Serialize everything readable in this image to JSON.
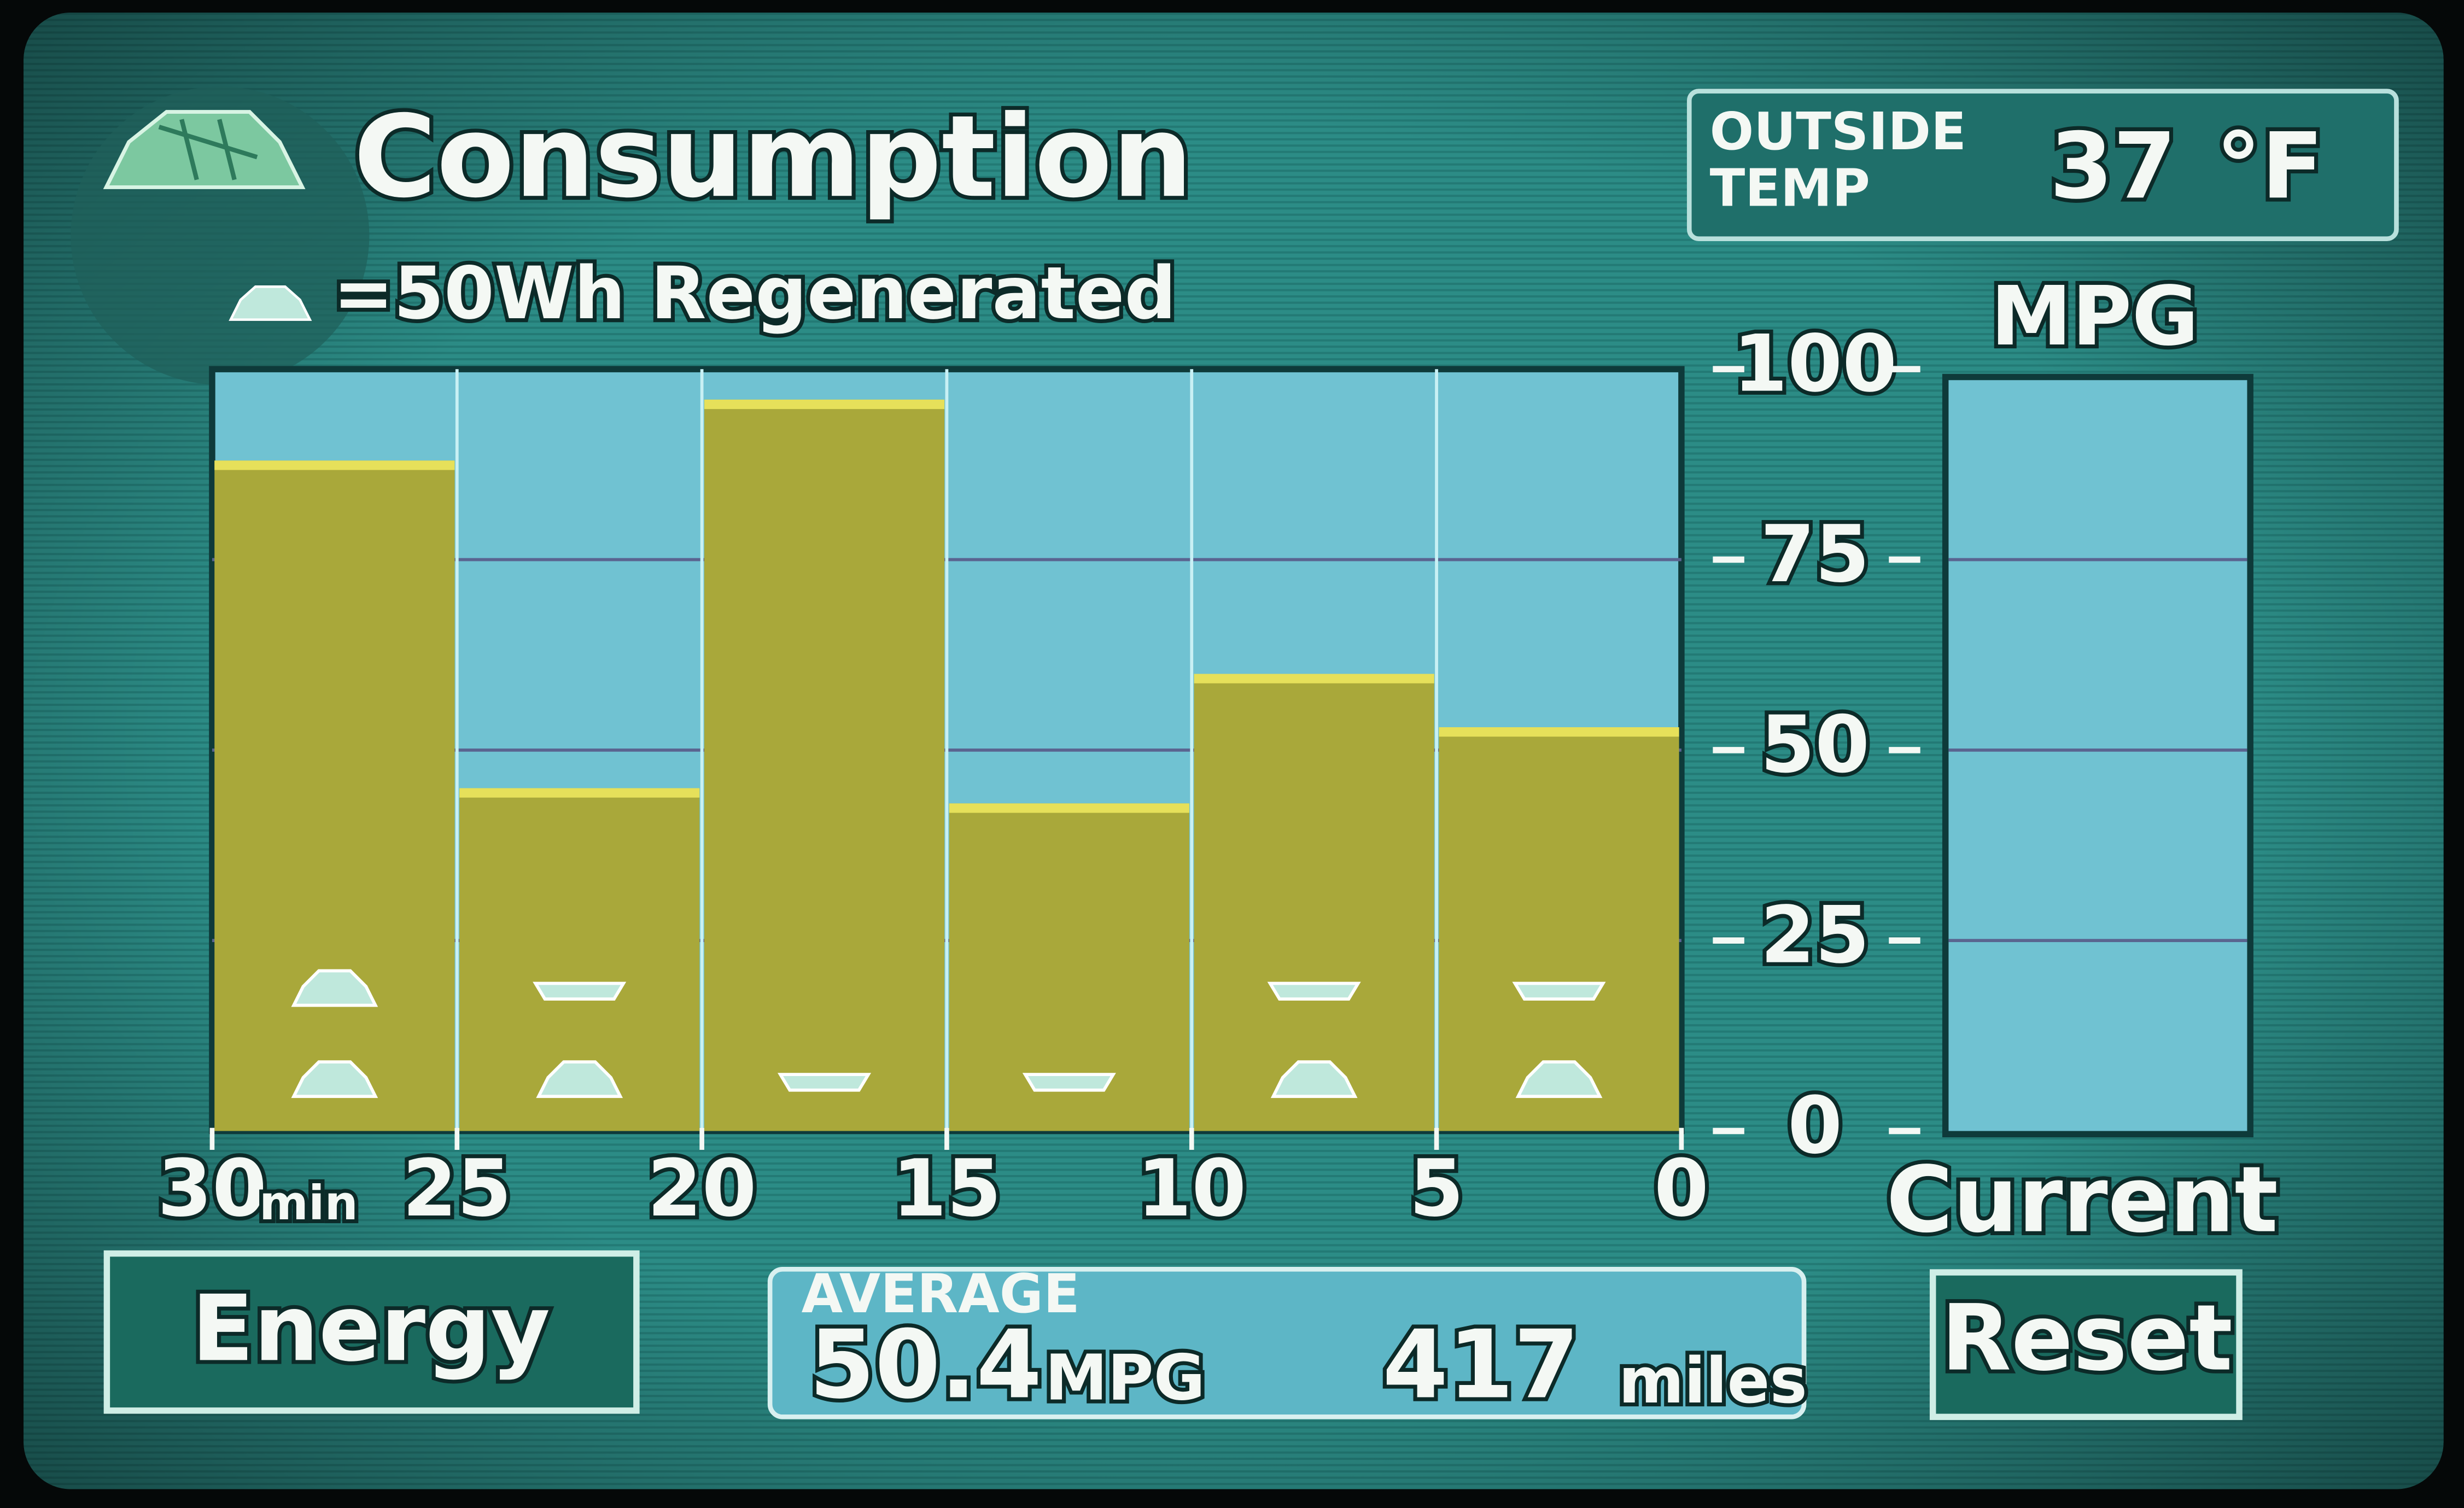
{
  "header": {
    "title": "Consumption",
    "legend": "=50Wh Regenerated"
  },
  "outside_temp": {
    "label_lines": [
      "OUTSIDE",
      "TEMP"
    ],
    "value": "37",
    "unit": "°F"
  },
  "chart_data": {
    "type": "histogram",
    "bins": [
      30,
      25,
      20,
      15,
      10,
      5,
      0
    ],
    "values": [
      88,
      45,
      96,
      43,
      60,
      53
    ],
    "bar_color": "#a9a83a",
    "top_color": "#e6e05a",
    "regen": {
      "values": [
        2,
        1.5,
        0.5,
        0.5,
        1.5,
        1.5
      ],
      "color": "#bfe8dc"
    },
    "xlim": [
      30,
      0
    ],
    "xticks": [
      30,
      25,
      20,
      15,
      10,
      5,
      0
    ],
    "x_unit": "min",
    "ylim": [
      0,
      100
    ],
    "yticks": [
      0,
      25,
      50,
      75,
      100
    ],
    "y_title": "MPG",
    "grid": true,
    "current_label": "Current"
  },
  "buttons": {
    "energy": "Energy",
    "reset": "Reset"
  },
  "average": {
    "label": "AVERAGE",
    "mpg": "50.4",
    "mpg_unit": "MPG",
    "distance": "417",
    "distance_unit": "miles"
  }
}
